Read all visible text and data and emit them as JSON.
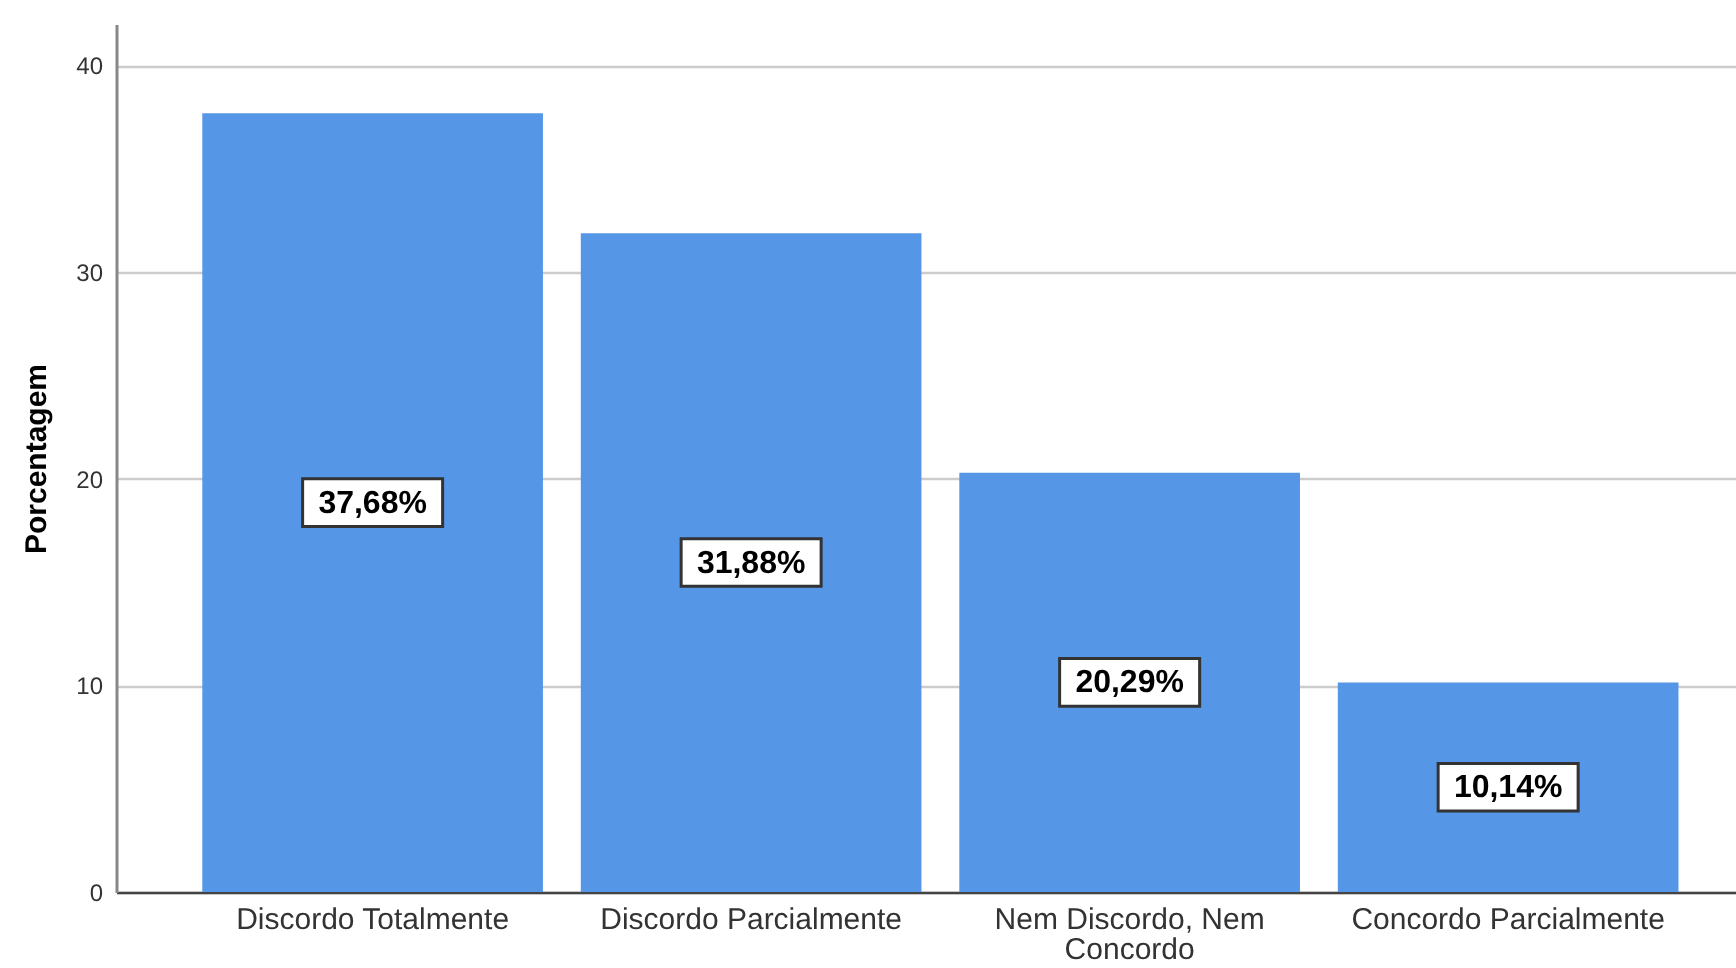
{
  "chart_data": {
    "type": "bar",
    "categories": [
      "Discordo Totalmente",
      "Discordo Parcialmente",
      "Nem Discordo, Nem Concordo",
      "Concordo Parcialmente"
    ],
    "values": [
      37.68,
      31.88,
      20.29,
      10.14
    ],
    "value_labels": [
      "37,68%",
      "31,88%",
      "20,29%",
      "10,14%"
    ],
    "color": "#5596e6",
    "ylabel": "Porcentagem",
    "ylim": [
      0,
      42
    ],
    "yticks": [
      0,
      10,
      20,
      30,
      40
    ],
    "grid": "y"
  }
}
